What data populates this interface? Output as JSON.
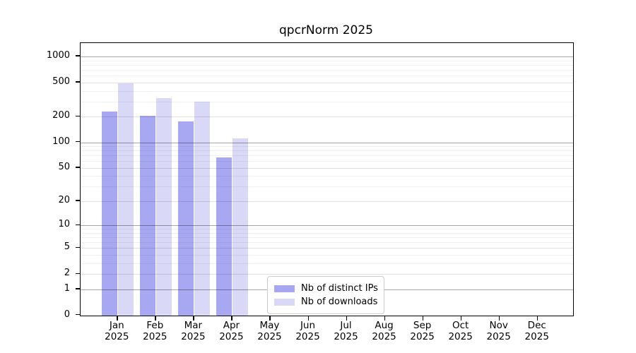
{
  "title": "qpcrNorm 2025",
  "chart_data": {
    "type": "bar",
    "title": "qpcrNorm 2025",
    "x_labels": [
      {
        "month": "Jan",
        "year": "2025"
      },
      {
        "month": "Feb",
        "year": "2025"
      },
      {
        "month": "Mar",
        "year": "2025"
      },
      {
        "month": "Apr",
        "year": "2025"
      },
      {
        "month": "May",
        "year": "2025"
      },
      {
        "month": "Jun",
        "year": "2025"
      },
      {
        "month": "Jul",
        "year": "2025"
      },
      {
        "month": "Aug",
        "year": "2025"
      },
      {
        "month": "Sep",
        "year": "2025"
      },
      {
        "month": "Oct",
        "year": "2025"
      },
      {
        "month": "Nov",
        "year": "2025"
      },
      {
        "month": "Dec",
        "year": "2025"
      }
    ],
    "series": [
      {
        "name": "Nb of distinct IPs",
        "color": "#a8a8f2",
        "values": [
          228,
          205,
          177,
          66,
          0,
          0,
          0,
          0,
          0,
          0,
          0,
          0
        ]
      },
      {
        "name": "Nb of downloads",
        "color": "#d9d9f7",
        "values": [
          490,
          330,
          298,
          111,
          0,
          0,
          0,
          0,
          0,
          0,
          0,
          0
        ]
      }
    ],
    "y_axis": {
      "scale": "log1p",
      "ticks": [
        0,
        1,
        2,
        5,
        10,
        20,
        50,
        100,
        200,
        500,
        1000
      ],
      "ylim": [
        0,
        1430
      ]
    },
    "grid": "both",
    "legend_position": "bottom-center-inside"
  }
}
